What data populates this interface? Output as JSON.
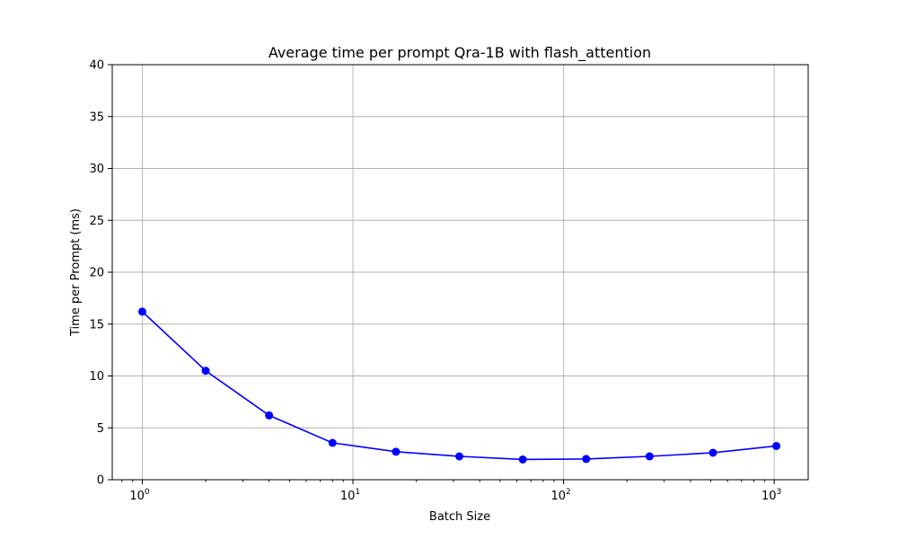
{
  "chart_data": {
    "type": "line",
    "title": "Average time per prompt Qra-1B with flash_attention",
    "xlabel": "Batch Size",
    "ylabel": "Time per Prompt (ms)",
    "xscale": "log",
    "xlim": [
      0.72,
      1450
    ],
    "ylim": [
      0,
      40
    ],
    "grid": true,
    "x_ticks": [
      {
        "value": 1,
        "base": "10",
        "exp": "0"
      },
      {
        "value": 10,
        "base": "10",
        "exp": "1"
      },
      {
        "value": 100,
        "base": "10",
        "exp": "2"
      },
      {
        "value": 1000,
        "base": "10",
        "exp": "3"
      }
    ],
    "y_ticks": [
      0,
      5,
      10,
      15,
      20,
      25,
      30,
      35,
      40
    ],
    "series": [
      {
        "name": "flash_attention",
        "color": "#0000ff",
        "marker": "circle",
        "x": [
          1,
          2,
          4,
          8,
          16,
          32,
          64,
          128,
          256,
          512,
          1024
        ],
        "y": [
          16.2,
          10.5,
          6.2,
          3.55,
          2.7,
          2.25,
          1.95,
          2.0,
          2.25,
          2.6,
          3.25
        ]
      }
    ]
  }
}
